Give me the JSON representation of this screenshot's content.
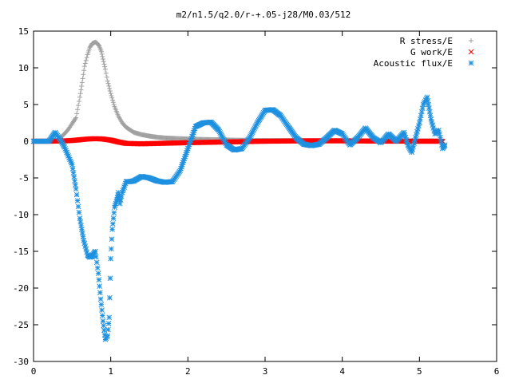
{
  "chart_data": {
    "type": "scatter",
    "title": "m2/n1.5/q2.0/r-+.05-j28/M0.03/512",
    "xlim": [
      0,
      6
    ],
    "ylim": [
      -30,
      15
    ],
    "x_ticks": [
      0,
      1,
      2,
      3,
      4,
      5,
      6
    ],
    "y_ticks": [
      15,
      10,
      5,
      0,
      -5,
      -10,
      -15,
      -20,
      -25,
      -30
    ],
    "grid": false,
    "legend_position": "top-right",
    "series": [
      {
        "name": "R stress/E",
        "color": "#a0a0a0",
        "marker": "plus",
        "x": [
          0.0,
          0.1,
          0.2,
          0.3,
          0.35,
          0.4,
          0.45,
          0.5,
          0.55,
          0.6,
          0.63,
          0.66,
          0.7,
          0.73,
          0.76,
          0.8,
          0.82,
          0.85,
          0.88,
          0.9,
          0.93,
          0.96,
          1.0,
          1.05,
          1.1,
          1.15,
          1.2,
          1.3,
          1.4,
          1.5,
          1.6,
          1.7,
          1.8,
          1.9,
          2.0,
          2.2,
          2.4,
          2.6,
          2.8,
          3.0,
          3.5,
          4.0,
          4.5,
          5.0,
          5.3
        ],
        "y": [
          0,
          0,
          0,
          0.1,
          0.5,
          1.0,
          1.6,
          2.4,
          3.2,
          6.0,
          8.0,
          10.2,
          11.8,
          12.8,
          13.3,
          13.5,
          13.4,
          13.0,
          12.2,
          11.2,
          9.8,
          8.2,
          6.5,
          4.7,
          3.4,
          2.5,
          1.9,
          1.2,
          0.9,
          0.7,
          0.55,
          0.45,
          0.4,
          0.35,
          0.3,
          0.25,
          0.2,
          0.15,
          0.12,
          0.1,
          0.08,
          0.06,
          0.05,
          0.05,
          0.05
        ]
      },
      {
        "name": "G work/E",
        "color": "#ff0000",
        "marker": "cross",
        "x": [
          0.0,
          0.2,
          0.4,
          0.5,
          0.6,
          0.7,
          0.8,
          0.9,
          1.0,
          1.1,
          1.2,
          1.4,
          1.6,
          1.8,
          2.0,
          2.5,
          3.0,
          3.5,
          4.0,
          4.5,
          5.0,
          5.3
        ],
        "y": [
          0,
          0,
          0.05,
          0.1,
          0.2,
          0.3,
          0.35,
          0.3,
          0.15,
          -0.1,
          -0.3,
          -0.35,
          -0.3,
          -0.25,
          -0.2,
          -0.1,
          0,
          0.05,
          0.05,
          0.02,
          0,
          0
        ]
      },
      {
        "name": "Acoustic flux/E",
        "color": "#1e90e0",
        "marker": "star",
        "x": [
          0.0,
          0.1,
          0.2,
          0.28,
          0.32,
          0.36,
          0.4,
          0.45,
          0.5,
          0.55,
          0.6,
          0.65,
          0.7,
          0.73,
          0.76,
          0.8,
          0.84,
          0.87,
          0.9,
          0.93,
          0.96,
          0.98,
          1.0,
          1.02,
          1.05,
          1.08,
          1.1,
          1.12,
          1.15,
          1.2,
          1.25,
          1.3,
          1.4,
          1.5,
          1.6,
          1.7,
          1.8,
          1.9,
          2.0,
          2.1,
          2.2,
          2.3,
          2.4,
          2.5,
          2.6,
          2.7,
          2.8,
          2.9,
          3.0,
          3.1,
          3.2,
          3.3,
          3.4,
          3.5,
          3.6,
          3.7,
          3.8,
          3.9,
          4.0,
          4.1,
          4.2,
          4.3,
          4.4,
          4.5,
          4.6,
          4.7,
          4.8,
          4.85,
          4.9,
          4.95,
          5.0,
          5.05,
          5.1,
          5.15,
          5.2,
          5.25,
          5.3,
          5.33
        ],
        "y": [
          0,
          0,
          0,
          1.2,
          0.6,
          0,
          -0.8,
          -2.0,
          -3.2,
          -6.5,
          -10.5,
          -13.5,
          -15.5,
          -15.8,
          -15.6,
          -15.0,
          -18.0,
          -21.5,
          -24.5,
          -27.0,
          -26.5,
          -24.0,
          -16.0,
          -12.0,
          -9.0,
          -8.0,
          -7.0,
          -8.5,
          -7.0,
          -5.5,
          -5.5,
          -5.4,
          -4.8,
          -5.0,
          -5.4,
          -5.6,
          -5.5,
          -4.0,
          -1.0,
          2.0,
          2.5,
          2.6,
          1.5,
          -0.5,
          -1.2,
          -1.0,
          0.5,
          2.5,
          4.2,
          4.3,
          3.5,
          2.0,
          0.5,
          -0.4,
          -0.6,
          -0.4,
          0.5,
          1.5,
          1.0,
          -0.5,
          0.5,
          1.8,
          0.5,
          -0.2,
          1.0,
          0,
          1.2,
          -0.5,
          -1.5,
          0.5,
          2.5,
          5.0,
          6.0,
          3.0,
          1.0,
          1.5,
          -1.0,
          -0.5
        ]
      }
    ]
  }
}
